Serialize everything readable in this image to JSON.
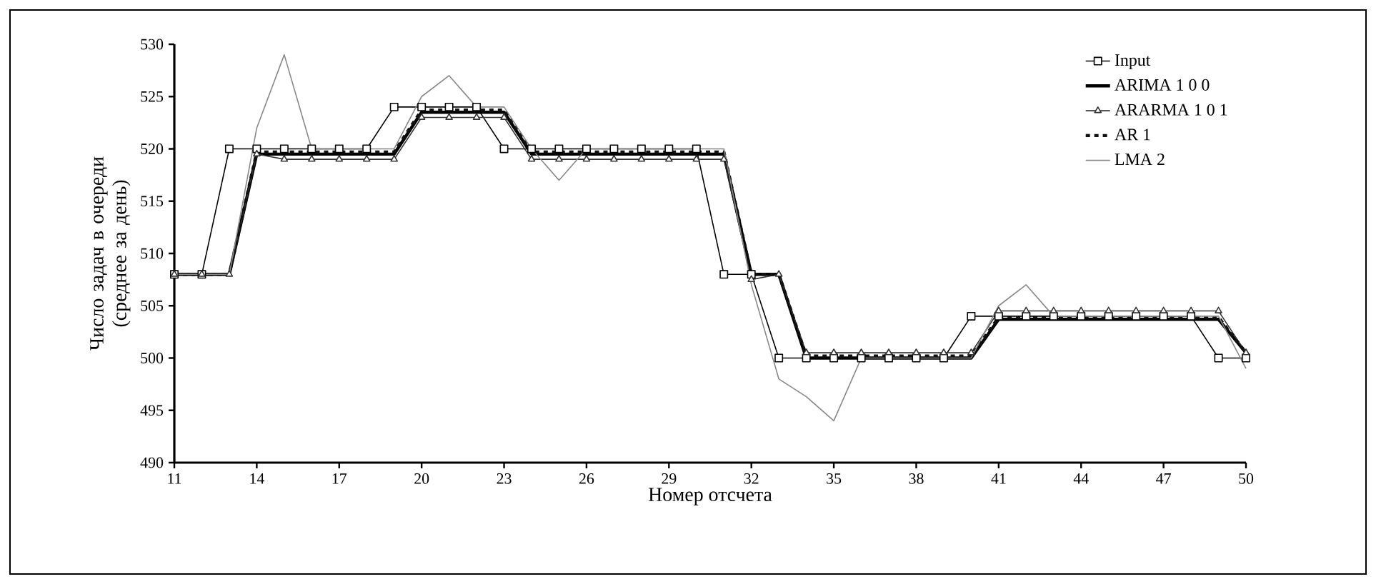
{
  "chart_data": {
    "type": "line",
    "xlabel": "Номер отсчета",
    "ylabel": "Число задач в очереди (среднее за день)",
    "x": [
      11,
      12,
      13,
      14,
      15,
      16,
      17,
      18,
      19,
      20,
      21,
      22,
      23,
      24,
      25,
      26,
      27,
      28,
      29,
      30,
      31,
      32,
      33,
      34,
      35,
      36,
      37,
      38,
      39,
      40,
      41,
      42,
      43,
      44,
      45,
      46,
      47,
      48,
      49,
      50
    ],
    "xlim": [
      11,
      50
    ],
    "xticks": [
      11,
      14,
      17,
      20,
      23,
      26,
      29,
      32,
      35,
      38,
      41,
      44,
      47,
      50
    ],
    "ylim": [
      490,
      530
    ],
    "yticks": [
      490,
      495,
      500,
      505,
      510,
      515,
      520,
      525,
      530
    ],
    "grid": false,
    "legend": "top right",
    "series": [
      {
        "name": "Input",
        "color": "#000000",
        "marker": "square",
        "line_style": "solid",
        "values": [
          508,
          508,
          520,
          520,
          520,
          520,
          520,
          520,
          524,
          524,
          524,
          524,
          520,
          520,
          520,
          520,
          520,
          520,
          520,
          520,
          508,
          508,
          500,
          500,
          500,
          500,
          500,
          500,
          500,
          504,
          504,
          504,
          504,
          504,
          504,
          504,
          504,
          504,
          500,
          500
        ]
      },
      {
        "name": "ARIMA 1 0 0",
        "color": "#000000",
        "marker": "none",
        "line_style": "solid",
        "values": [
          508,
          508,
          508,
          519.5,
          519.5,
          519.5,
          519.5,
          519.5,
          519.5,
          523.5,
          523.5,
          523.5,
          523.5,
          519.5,
          519.5,
          519.5,
          519.5,
          519.5,
          519.5,
          519.5,
          519.5,
          508,
          508,
          500,
          500,
          500,
          500,
          500,
          500,
          500,
          503.7,
          503.7,
          503.7,
          503.7,
          503.7,
          503.7,
          503.7,
          503.7,
          503.7,
          500.5
        ]
      },
      {
        "name": "ARARMA 1 0 1",
        "color": "#333333",
        "marker": "triangle",
        "line_style": "solid",
        "values": [
          508,
          508,
          508,
          519.5,
          519,
          519,
          519,
          519,
          519,
          523,
          523,
          523,
          523,
          519,
          519,
          519,
          519,
          519,
          519,
          519,
          519,
          507.5,
          508,
          500.5,
          500.5,
          500.5,
          500.5,
          500.5,
          500.5,
          500.5,
          504.5,
          504.5,
          504.5,
          504.5,
          504.5,
          504.5,
          504.5,
          504.5,
          504.5,
          500.5
        ]
      },
      {
        "name": "AR 1",
        "color": "#101010",
        "marker": "none",
        "line_style": "dashed",
        "values": [
          508,
          508,
          508,
          519.7,
          519.7,
          519.7,
          519.7,
          519.7,
          519.7,
          523.7,
          523.7,
          523.7,
          523.7,
          519.7,
          519.7,
          519.7,
          519.7,
          519.7,
          519.7,
          519.7,
          519.7,
          508,
          508,
          500.2,
          500.2,
          500.2,
          500.2,
          500.2,
          500.2,
          500.2,
          503.9,
          503.9,
          503.9,
          503.9,
          503.9,
          503.9,
          503.9,
          503.9,
          503.9,
          500.5
        ]
      },
      {
        "name": "LMA 2",
        "color": "#888888",
        "marker": "none",
        "line_style": "solid",
        "values": [
          508,
          508,
          508,
          522,
          529,
          520,
          520,
          520,
          520,
          525,
          527,
          524,
          524,
          520,
          517,
          520,
          520,
          520,
          520,
          520,
          520,
          507,
          498,
          496.3,
          494,
          500,
          500,
          500,
          500,
          500,
          505,
          507,
          504,
          504,
          504,
          504,
          504,
          504,
          504,
          499
        ]
      }
    ]
  }
}
